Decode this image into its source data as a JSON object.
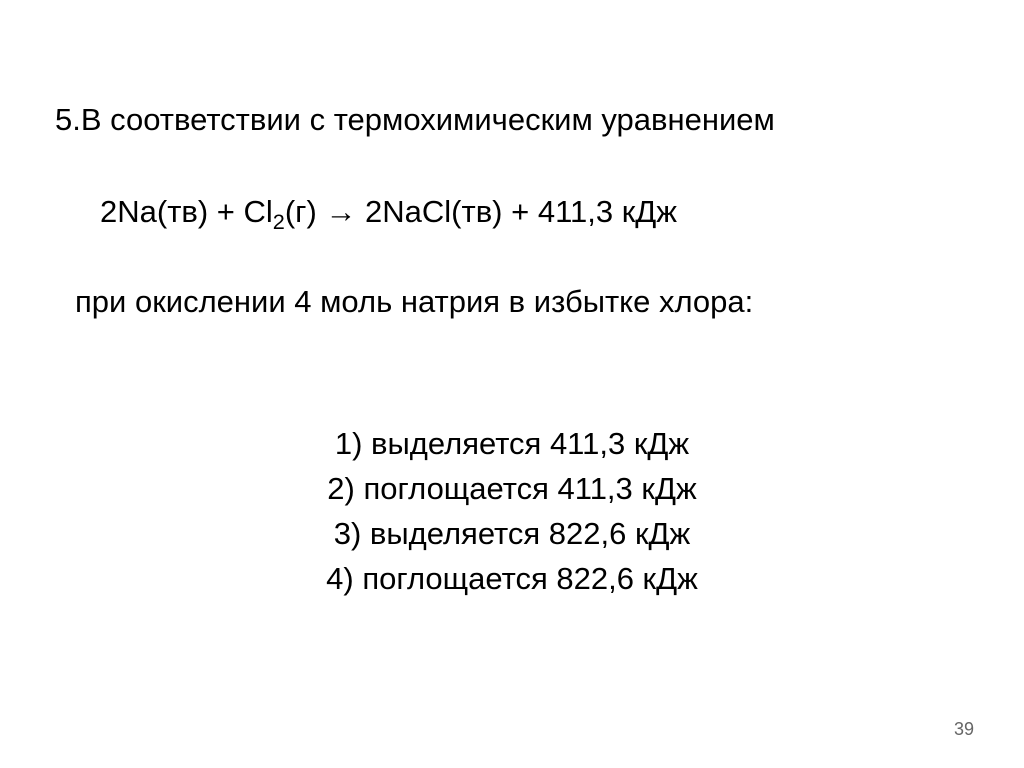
{
  "background_color": "#ffffff",
  "text_color": "#000000",
  "font_family": "Arial",
  "slide_width": 1024,
  "slide_height": 768,
  "question": {
    "number_and_intro": "5.В соответствии с термохимическим уравнением",
    "equation_prefix": "2Na(тв) + Cl",
    "equation_subscript": "2",
    "equation_suffix": "(г) →  2NaCl(тв) + 411,3 кДж",
    "condition": "при окислении 4 моль натрия в избытке хлора:",
    "fontsize": 31
  },
  "options": [
    "1) выделяется 411,3 кДж",
    "2) поглощается 411,3 кДж",
    "3) выделяется 822,6 кДж",
    "4) поглощается 822,6 кДж"
  ],
  "page_number": "39",
  "page_number_color": "#666666",
  "page_number_fontsize": 18
}
